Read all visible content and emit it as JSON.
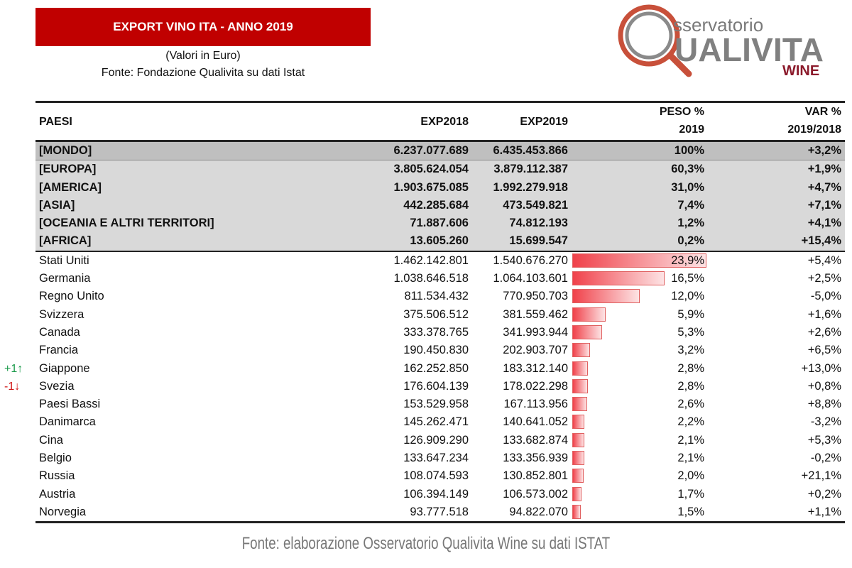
{
  "title": "EXPORT VINO ITA - ANNO 2019",
  "subtitle_units": "(Valori in Euro)",
  "subtitle_source": "Fonte: Fondazione Qualivita su dati Istat",
  "logo": {
    "line1": "sservatorio",
    "line2": "UALIVITA",
    "line3": "WINE",
    "colors": {
      "ring": "#c8503a",
      "text": "#808080",
      "wine": "#8b1a2b"
    }
  },
  "columns": {
    "paesi": "PAESI",
    "exp2018": "EXP2018",
    "exp2019": "EXP2019",
    "peso": "PESO %",
    "peso_sub": "2019",
    "var": "VAR %",
    "var_sub": "2019/2018"
  },
  "world": {
    "name": "[MONDO]",
    "exp2018": "6.237.077.689",
    "exp2019": "6.435.453.866",
    "peso": "100%",
    "var": "+3,2%"
  },
  "regions": [
    {
      "name": "[EUROPA]",
      "exp2018": "3.805.624.054",
      "exp2019": "3.879.112.387",
      "peso": "60,3%",
      "var": "+1,9%"
    },
    {
      "name": "[AMERICA]",
      "exp2018": "1.903.675.085",
      "exp2019": "1.992.279.918",
      "peso": "31,0%",
      "var": "+4,7%"
    },
    {
      "name": "[ASIA]",
      "exp2018": "442.285.684",
      "exp2019": "473.549.821",
      "peso": "7,4%",
      "var": "+7,1%"
    },
    {
      "name": "[OCEANIA E ALTRI TERRITORI]",
      "exp2018": "71.887.606",
      "exp2019": "74.812.193",
      "peso": "1,2%",
      "var": "+4,1%"
    },
    {
      "name": "[AFRICA]",
      "exp2018": "13.605.260",
      "exp2019": "15.699.547",
      "peso": "0,2%",
      "var": "+15,4%"
    }
  ],
  "countries": [
    {
      "name": "Stati Uniti",
      "exp2018": "1.462.142.801",
      "exp2019": "1.540.676.270",
      "peso": "23,9%",
      "peso_value": 23.9,
      "var": "+5,4%"
    },
    {
      "name": "Germania",
      "exp2018": "1.038.646.518",
      "exp2019": "1.064.103.601",
      "peso": "16,5%",
      "peso_value": 16.5,
      "var": "+2,5%"
    },
    {
      "name": "Regno Unito",
      "exp2018": "811.534.432",
      "exp2019": "770.950.703",
      "peso": "12,0%",
      "peso_value": 12.0,
      "var": "-5,0%"
    },
    {
      "name": "Svizzera",
      "exp2018": "375.506.512",
      "exp2019": "381.559.462",
      "peso": "5,9%",
      "peso_value": 5.9,
      "var": "+1,6%"
    },
    {
      "name": "Canada",
      "exp2018": "333.378.765",
      "exp2019": "341.993.944",
      "peso": "5,3%",
      "peso_value": 5.3,
      "var": "+2,6%"
    },
    {
      "name": "Francia",
      "exp2018": "190.450.830",
      "exp2019": "202.903.707",
      "peso": "3,2%",
      "peso_value": 3.2,
      "var": "+6,5%"
    },
    {
      "name": "Giappone",
      "exp2018": "162.252.850",
      "exp2019": "183.312.140",
      "peso": "2,8%",
      "peso_value": 2.8,
      "var": "+13,0%",
      "rank_change": "+1↑",
      "rank_color": "#1a9a4a"
    },
    {
      "name": "Svezia",
      "exp2018": "176.604.139",
      "exp2019": "178.022.298",
      "peso": "2,8%",
      "peso_value": 2.8,
      "var": "+0,8%",
      "rank_change": "-1↓",
      "rank_color": "#d01010"
    },
    {
      "name": "Paesi Bassi",
      "exp2018": "153.529.958",
      "exp2019": "167.113.956",
      "peso": "2,6%",
      "peso_value": 2.6,
      "var": "+8,8%"
    },
    {
      "name": "Danimarca",
      "exp2018": "145.262.471",
      "exp2019": "140.641.052",
      "peso": "2,2%",
      "peso_value": 2.2,
      "var": "-3,2%"
    },
    {
      "name": "Cina",
      "exp2018": "126.909.290",
      "exp2019": "133.682.874",
      "peso": "2,1%",
      "peso_value": 2.1,
      "var": "+5,3%"
    },
    {
      "name": "Belgio",
      "exp2018": "133.647.234",
      "exp2019": "133.356.939",
      "peso": "2,1%",
      "peso_value": 2.1,
      "var": "-0,2%"
    },
    {
      "name": "Russia",
      "exp2018": "108.074.593",
      "exp2019": "130.852.801",
      "peso": "2,0%",
      "peso_value": 2.0,
      "var": "+21,1%"
    },
    {
      "name": "Austria",
      "exp2018": "106.394.149",
      "exp2019": "106.573.002",
      "peso": "1,7%",
      "peso_value": 1.7,
      "var": "+0,2%"
    },
    {
      "name": "Norvegia",
      "exp2018": "93.777.518",
      "exp2019": "94.822.070",
      "peso": "1,5%",
      "peso_value": 1.5,
      "var": "+1,1%"
    }
  ],
  "footer": "Fonte: elaborazione Osservatorio Qualivita Wine su dati ISTAT"
}
